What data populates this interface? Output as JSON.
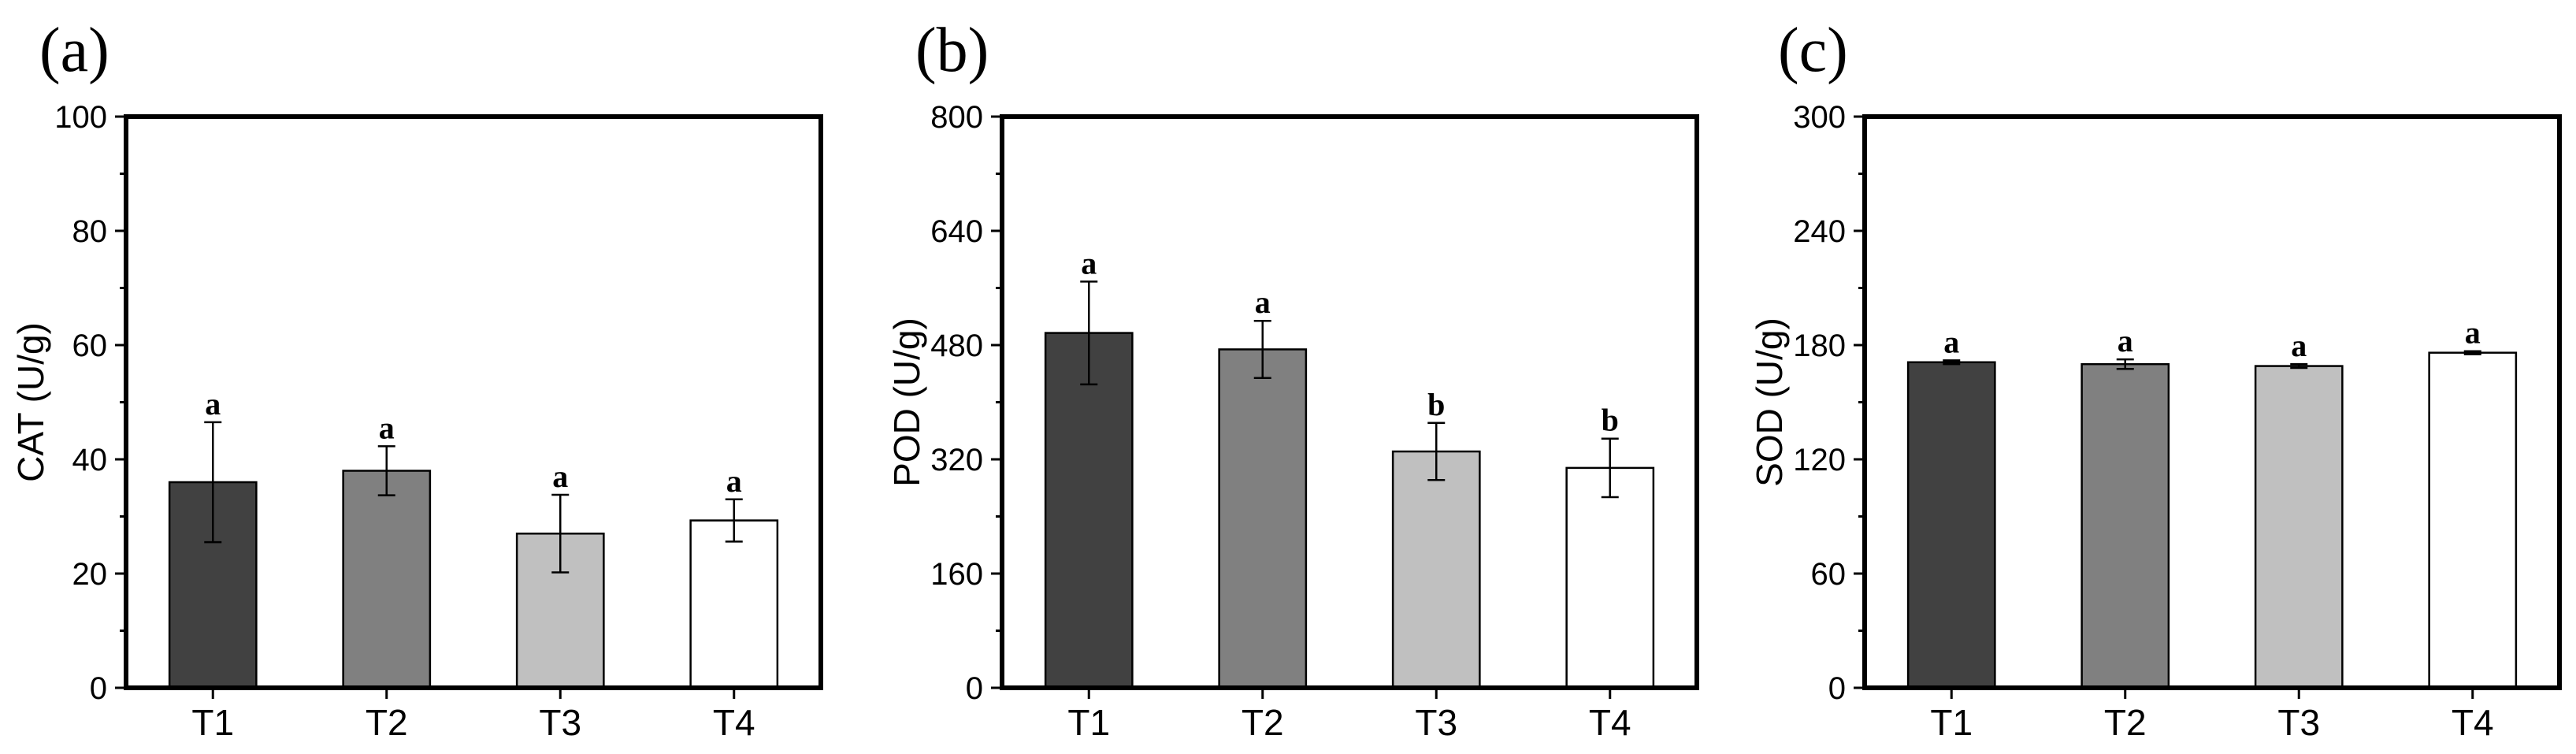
{
  "chart_data": [
    {
      "type": "bar",
      "panel_label": "(a)",
      "ylabel": "CAT (U/g)",
      "ylim": [
        0,
        100
      ],
      "yticks": [
        0,
        20,
        40,
        60,
        80,
        100
      ],
      "categories": [
        "T1",
        "T2",
        "T3",
        "T4"
      ],
      "values": [
        36,
        38,
        27,
        29.3
      ],
      "errors": [
        10.5,
        4.3,
        6.8,
        3.7
      ],
      "significance": [
        "a",
        "a",
        "a",
        "a"
      ],
      "colors": [
        "#414141",
        "#808080",
        "#c0c0c0",
        "#ffffff"
      ]
    },
    {
      "type": "bar",
      "panel_label": "(b)",
      "ylabel": "POD (U/g)",
      "ylim": [
        0,
        800
      ],
      "yticks": [
        0,
        160,
        320,
        480,
        640,
        800
      ],
      "categories": [
        "T1",
        "T2",
        "T3",
        "T4"
      ],
      "values": [
        497,
        474,
        331,
        308
      ],
      "errors": [
        72,
        40,
        40,
        41
      ],
      "significance": [
        "a",
        "a",
        "b",
        "b"
      ],
      "colors": [
        "#414141",
        "#808080",
        "#c0c0c0",
        "#ffffff"
      ]
    },
    {
      "type": "bar",
      "panel_label": "(c)",
      "ylabel": "SOD (U/g)",
      "ylim": [
        0,
        300
      ],
      "yticks": [
        0,
        60,
        120,
        180,
        240,
        300
      ],
      "categories": [
        "T1",
        "T2",
        "T3",
        "T4"
      ],
      "values": [
        171,
        170,
        169,
        176
      ],
      "errors": [
        1,
        2.5,
        1,
        0.8
      ],
      "significance": [
        "a",
        "a",
        "a",
        "a"
      ],
      "colors": [
        "#414141",
        "#808080",
        "#c0c0c0",
        "#ffffff"
      ]
    }
  ]
}
